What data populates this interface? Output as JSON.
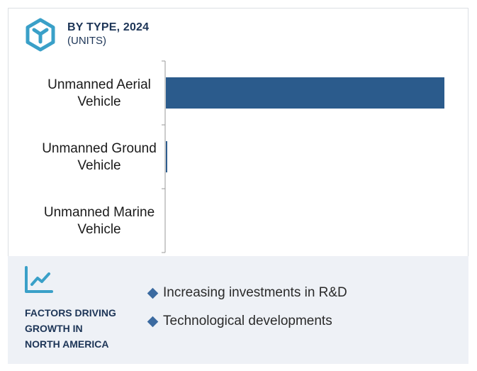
{
  "header": {
    "title": "BY TYPE, 2024",
    "subtitle": "(UNITS)"
  },
  "colors": {
    "bar": "#2b5b8c",
    "title": "#1d3557",
    "icon": "#3aa0c8",
    "footer_bg": "#eef1f6"
  },
  "chart_data": {
    "type": "bar",
    "orientation": "horizontal",
    "categories": [
      "Unmanned Aerial Vehicle",
      "Unmanned Ground Vehicle",
      "Unmanned Marine Vehicle"
    ],
    "category_lines": [
      [
        "Unmanned Aerial",
        "Vehicle"
      ],
      [
        "Unmanned Ground",
        "Vehicle"
      ],
      [
        "Unmanned Marine",
        "Vehicle"
      ]
    ],
    "values": [
      100,
      0.5,
      0
    ],
    "xlim": [
      0,
      100
    ],
    "title": "BY TYPE, 2024",
    "subtitle": "(UNITS)",
    "grid": false
  },
  "factors": {
    "title": "FACTORS DRIVING\nGROWTH IN\nNORTH AMERICA",
    "items": [
      "Increasing investments in R&D",
      "Technological developments"
    ]
  },
  "icons": {
    "logo": "hexagon-y-icon",
    "trend": "line-chart-icon",
    "bullet": "diamond-icon"
  }
}
